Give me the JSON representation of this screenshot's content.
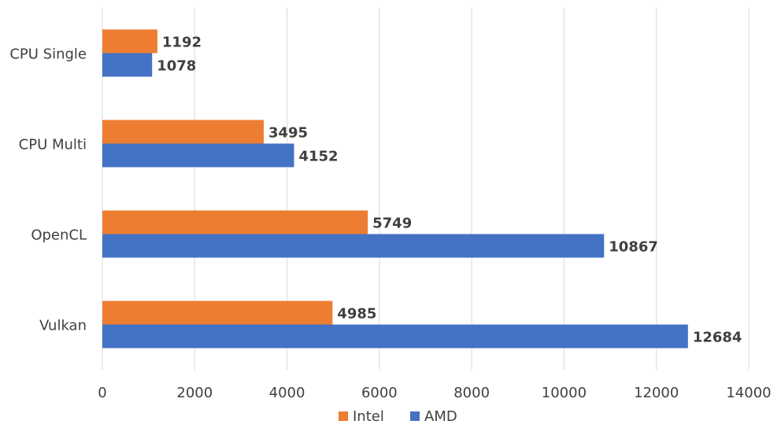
{
  "chart_data": {
    "type": "bar",
    "orientation": "horizontal",
    "categories": [
      "CPU Single",
      "CPU Multi",
      "OpenCL",
      "Vulkan"
    ],
    "series": [
      {
        "name": "Intel",
        "color": "#ed7d31",
        "values": [
          1192,
          3495,
          5749,
          4985
        ]
      },
      {
        "name": "AMD",
        "color": "#4472c4",
        "values": [
          1078,
          4152,
          10867,
          12684
        ]
      }
    ],
    "xlim": [
      0,
      14000
    ],
    "x_ticks": [
      "0",
      "2000",
      "4000",
      "6000",
      "8000",
      "10000",
      "12000",
      "14000"
    ],
    "grid": true,
    "legend": "bottom-center",
    "data_labels": true
  }
}
